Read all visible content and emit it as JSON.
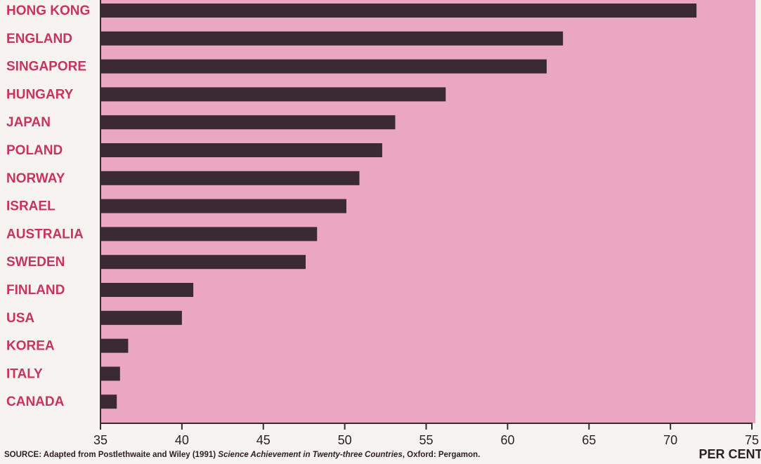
{
  "chart_data": {
    "type": "barh",
    "categories": [
      "HONG KONG",
      "ENGLAND",
      "SINGAPORE",
      "HUNGARY",
      "JAPAN",
      "POLAND",
      "NORWAY",
      "ISRAEL",
      "AUSTRALIA",
      "SWEDEN",
      "FINLAND",
      "USA",
      "KOREA",
      "ITALY",
      "CANADA"
    ],
    "values": [
      71.6,
      63.4,
      62.4,
      56.2,
      53.1,
      52.3,
      50.9,
      50.1,
      48.3,
      47.6,
      40.7,
      40.0,
      36.7,
      36.2,
      36.0
    ],
    "color": "#3b2a31",
    "background_color": "#eaa7c1",
    "category_color": "#c9345c",
    "xlim": [
      35,
      75
    ],
    "xticks": [
      35,
      40,
      45,
      50,
      55,
      60,
      65,
      70,
      75
    ],
    "x_label": "PER CENT",
    "source": {
      "prefix": "SOURCE:  Adapted from Postlethwaite and Wiley (1991) ",
      "title": "Science Achievement in Twenty-three Countries",
      "suffix": ", Oxford: Pergamon."
    }
  }
}
